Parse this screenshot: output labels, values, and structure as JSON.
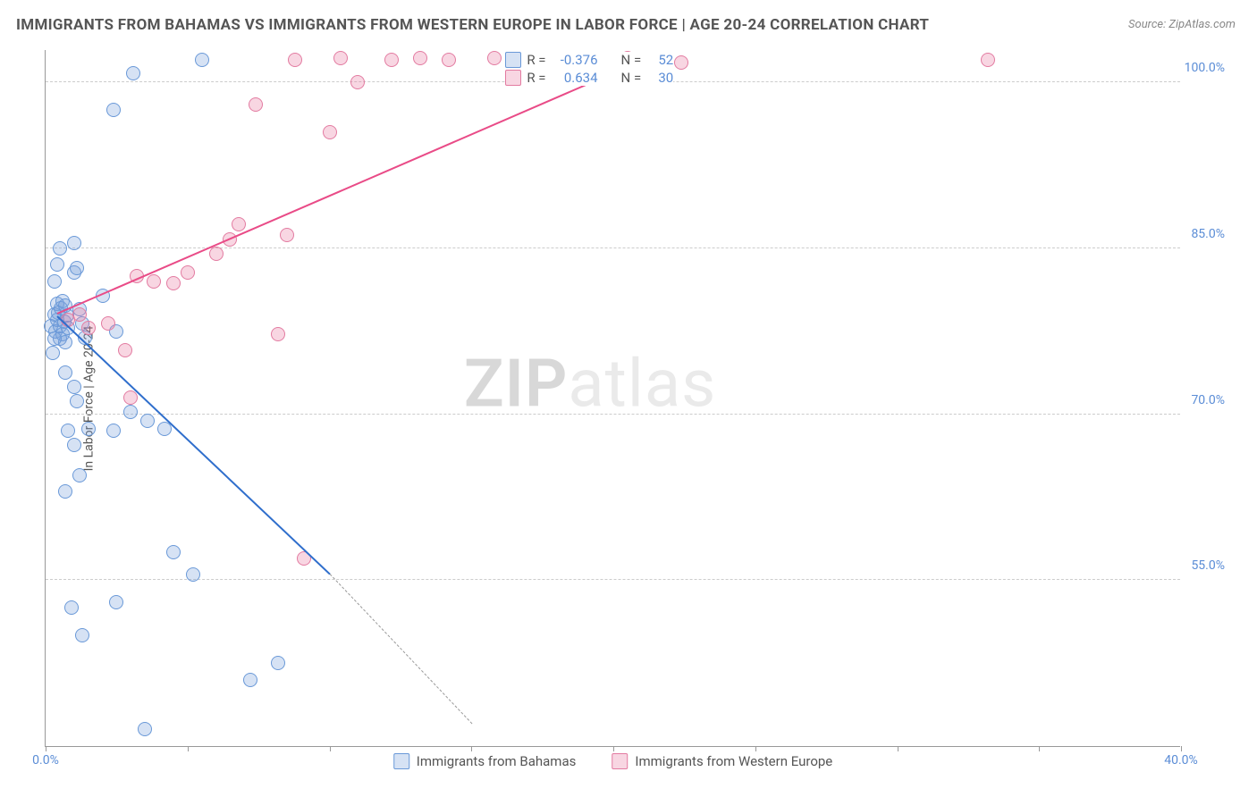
{
  "title": "IMMIGRANTS FROM BAHAMAS VS IMMIGRANTS FROM WESTERN EUROPE IN LABOR FORCE | AGE 20-24 CORRELATION CHART",
  "source": "Source: ZipAtlas.com",
  "watermark_zip": "ZIP",
  "watermark_atlas": "atlas",
  "y_axis_label": "In Labor Force | Age 20-24",
  "chart": {
    "type": "scatter-correlation",
    "background_color": "#ffffff",
    "grid_color": "#cccccc",
    "axis_color": "#999999",
    "x_range": [
      0,
      40
    ],
    "y_range": [
      40,
      103
    ],
    "x_ticks": [
      0,
      5,
      10,
      15,
      20,
      25,
      30,
      35,
      40
    ],
    "x_tick_labels": {
      "0": "0.0%",
      "40": "40.0%"
    },
    "y_ticks": [
      55,
      70,
      85,
      100
    ],
    "y_tick_labels": {
      "55": "55.0%",
      "70": "70.0%",
      "85": "85.0%",
      "100": "100.0%"
    },
    "marker_radius": 8,
    "marker_stroke_width": 1.5,
    "series": [
      {
        "id": "bahamas",
        "label": "Immigrants from Bahamas",
        "fill": "rgba(120,160,220,0.30)",
        "stroke": "#6a99d8",
        "r_value": "-0.376",
        "n_value": "52",
        "trend": {
          "x1": 0.4,
          "y1": 78.8,
          "x2": 10.0,
          "y2": 55.5,
          "color": "#2f6ecc",
          "dashed_to": {
            "x": 15.0,
            "y": 42.0
          }
        },
        "points": [
          [
            0.2,
            78
          ],
          [
            0.3,
            79
          ],
          [
            0.35,
            77.5
          ],
          [
            0.4,
            78.5
          ],
          [
            0.4,
            80
          ],
          [
            0.45,
            79.2
          ],
          [
            0.5,
            78
          ],
          [
            0.5,
            76.8
          ],
          [
            0.55,
            79.6
          ],
          [
            0.6,
            77.2
          ],
          [
            0.6,
            80.2
          ],
          [
            0.65,
            78.4
          ],
          [
            0.7,
            76.5
          ],
          [
            0.7,
            79.8
          ],
          [
            0.75,
            78.9
          ],
          [
            0.8,
            77.8
          ],
          [
            0.3,
            82
          ],
          [
            0.4,
            83.5
          ],
          [
            1.0,
            82.8
          ],
          [
            1.1,
            83.2
          ],
          [
            1.2,
            79.5
          ],
          [
            1.3,
            78.2
          ],
          [
            1.4,
            76.9
          ],
          [
            2.0,
            80.7
          ],
          [
            2.5,
            77.5
          ],
          [
            0.7,
            73.8
          ],
          [
            1.0,
            72.5
          ],
          [
            1.1,
            71.2
          ],
          [
            0.8,
            68.5
          ],
          [
            1.0,
            67.2
          ],
          [
            1.5,
            68.7
          ],
          [
            2.4,
            68.5
          ],
          [
            3.0,
            70.2
          ],
          [
            3.6,
            69.4
          ],
          [
            4.2,
            68.7
          ],
          [
            1.2,
            64.5
          ],
          [
            0.7,
            63.0
          ],
          [
            2.5,
            53.0
          ],
          [
            3.1,
            100.8
          ],
          [
            2.4,
            97.5
          ],
          [
            0.9,
            52.5
          ],
          [
            1.3,
            50.0
          ],
          [
            4.5,
            57.5
          ],
          [
            5.2,
            55.5
          ],
          [
            7.2,
            46.0
          ],
          [
            8.2,
            47.5
          ],
          [
            5.5,
            102.0
          ],
          [
            3.5,
            41.5
          ],
          [
            1.0,
            85.5
          ],
          [
            0.5,
            85.0
          ],
          [
            0.25,
            75.5
          ],
          [
            0.3,
            76.8
          ]
        ]
      },
      {
        "id": "western_europe",
        "label": "Immigrants from Western Europe",
        "fill": "rgba(232,120,160,0.30)",
        "stroke": "#e37ba1",
        "r_value": "0.634",
        "n_value": "30",
        "trend": {
          "x1": 0.4,
          "y1": 79.0,
          "x2": 21.3,
          "y2": 102.2,
          "color": "#e94b87"
        },
        "points": [
          [
            0.8,
            78.5
          ],
          [
            1.2,
            79.0
          ],
          [
            1.5,
            77.8
          ],
          [
            2.2,
            78.2
          ],
          [
            2.8,
            75.8
          ],
          [
            3.2,
            82.5
          ],
          [
            3.8,
            82.0
          ],
          [
            4.5,
            81.8
          ],
          [
            6.0,
            84.5
          ],
          [
            3.0,
            71.5
          ],
          [
            6.5,
            85.8
          ],
          [
            8.2,
            77.2
          ],
          [
            6.8,
            87.2
          ],
          [
            8.5,
            86.2
          ],
          [
            7.4,
            98.0
          ],
          [
            10.0,
            95.5
          ],
          [
            8.8,
            102.0
          ],
          [
            11.0,
            100.0
          ],
          [
            10.4,
            102.2
          ],
          [
            12.2,
            102.0
          ],
          [
            13.2,
            102.2
          ],
          [
            14.2,
            102.0
          ],
          [
            15.8,
            102.2
          ],
          [
            17.2,
            102.0
          ],
          [
            20.5,
            102.2
          ],
          [
            21.8,
            102.0
          ],
          [
            22.4,
            101.8
          ],
          [
            33.2,
            102.0
          ],
          [
            9.1,
            57.0
          ],
          [
            5.0,
            82.8
          ]
        ]
      }
    ]
  },
  "legend_top": {
    "r_label": "R =",
    "n_label": "N ="
  }
}
